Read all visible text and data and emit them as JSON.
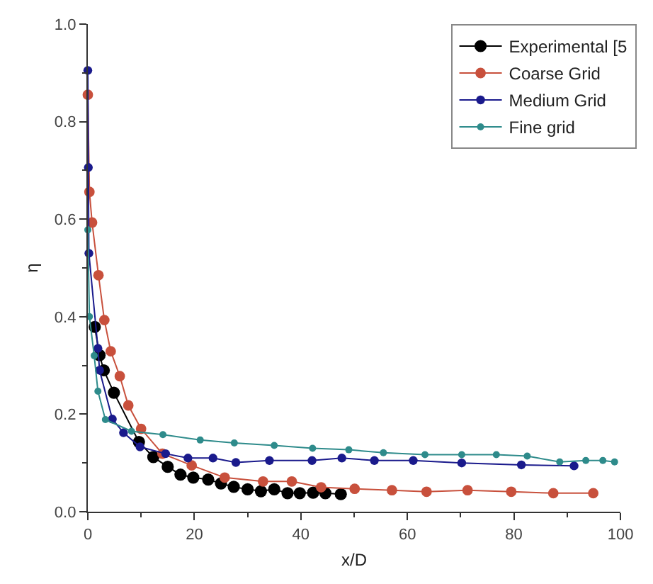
{
  "chart_data": {
    "type": "line",
    "xlabel": "x/D",
    "ylabel": "η",
    "xlim": [
      0,
      100
    ],
    "ylim": [
      0,
      1
    ],
    "xticks": [
      0,
      20,
      40,
      60,
      80,
      100
    ],
    "yticks": [
      {
        "value": 0,
        "label": "0.0"
      },
      0.2,
      0.4,
      0.6,
      0.8,
      {
        "value": 1,
        "label": "1.0"
      }
    ],
    "grid": false,
    "legend": "top right",
    "marker": "circle",
    "line_style": "solid",
    "series": [
      {
        "name": "Experimental [5",
        "color": "#000000",
        "x": [
          1.3,
          2.2,
          3,
          4.9,
          9.6,
          12.3,
          15,
          17.4,
          19.8,
          22.6,
          25,
          27.4,
          30,
          32.5,
          35,
          37.5,
          39.8,
          42.3,
          44.6,
          47.5
        ],
        "values": [
          0.379,
          0.321,
          0.29,
          0.244,
          0.143,
          0.112,
          0.092,
          0.076,
          0.07,
          0.066,
          0.058,
          0.051,
          0.046,
          0.042,
          0.046,
          0.038,
          0.038,
          0.039,
          0.038,
          0.036
        ]
      },
      {
        "name": "Coarse Grid",
        "color": "#c8503c",
        "x": [
          0,
          0.3,
          0.8,
          2,
          3.1,
          4.3,
          6,
          7.6,
          10,
          14,
          19.5,
          25.7,
          32.9,
          38.3,
          43.8,
          50.1,
          57.1,
          63.6,
          71.3,
          79.5,
          87.4,
          94.9
        ],
        "values": [
          0.855,
          0.656,
          0.593,
          0.485,
          0.393,
          0.329,
          0.278,
          0.218,
          0.17,
          0.119,
          0.095,
          0.07,
          0.062,
          0.062,
          0.05,
          0.047,
          0.044,
          0.041,
          0.044,
          0.041,
          0.038,
          0.038
        ]
      },
      {
        "name": "Medium Grid",
        "color": "#1a1a8c",
        "x": [
          0,
          0.1,
          0.2,
          1.9,
          2.2,
          4.6,
          6.7,
          9.8,
          14.6,
          18.8,
          23.5,
          27.8,
          34.1,
          42.1,
          47.7,
          53.8,
          61.1,
          70.2,
          81.4,
          91.3
        ],
        "values": [
          0.905,
          0.706,
          0.53,
          0.335,
          0.29,
          0.19,
          0.162,
          0.133,
          0.119,
          0.11,
          0.11,
          0.101,
          0.105,
          0.105,
          0.11,
          0.105,
          0.105,
          0.1,
          0.096,
          0.094
        ]
      },
      {
        "name": "Fine grid",
        "color": "#2e8b8b",
        "x": [
          0,
          0.3,
          1.2,
          1.9,
          3.3,
          8.2,
          14.1,
          21.1,
          27.5,
          35,
          42.2,
          49,
          55.5,
          63.3,
          70.2,
          76.7,
          82.5,
          88.6,
          93.5,
          96.7,
          98.9
        ],
        "values": [
          0.578,
          0.4,
          0.32,
          0.247,
          0.189,
          0.165,
          0.158,
          0.147,
          0.141,
          0.136,
          0.13,
          0.127,
          0.121,
          0.117,
          0.117,
          0.117,
          0.114,
          0.102,
          0.105,
          0.105,
          0.102
        ]
      }
    ]
  }
}
